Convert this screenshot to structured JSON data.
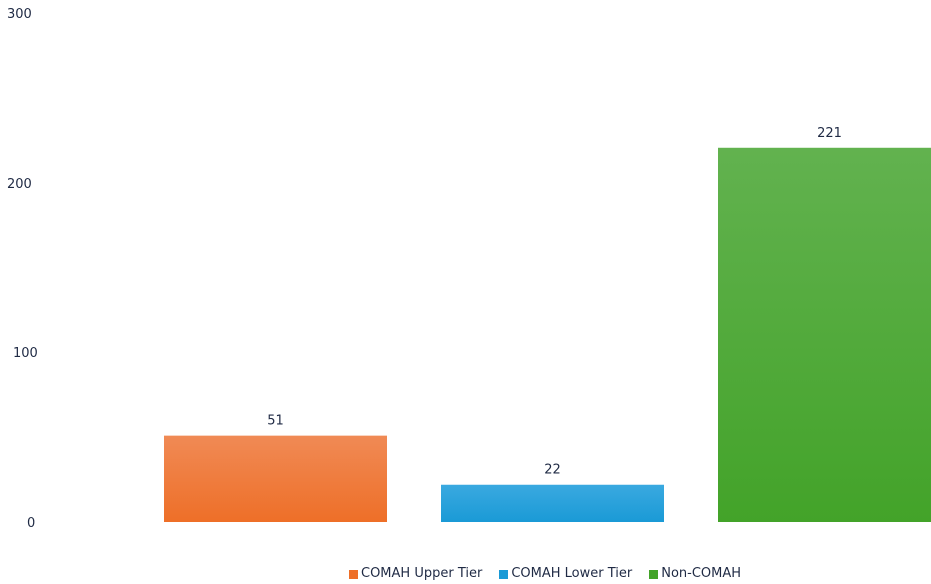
{
  "chart_data": {
    "type": "bar",
    "categories": [
      "COMAH Upper Tier",
      "COMAH Lower Tier",
      "Non-COMAH"
    ],
    "values": [
      51,
      22,
      221
    ],
    "ylim": [
      0,
      300
    ],
    "yticks": [
      "0",
      "100",
      "200",
      "300"
    ],
    "grid": false,
    "legend_position": "bottom",
    "series": [
      {
        "name": "COMAH Upper Tier",
        "value": 51,
        "label": "51",
        "color": "#ee6f28",
        "color_top": "#f08a55"
      },
      {
        "name": "COMAH Lower Tier",
        "value": 22,
        "label": "22",
        "color": "#1a9ad6",
        "color_top": "#3aa9e0"
      },
      {
        "name": "Non-COMAH",
        "value": 221,
        "label": "221",
        "color": "#43a329",
        "color_top": "#62b24f"
      }
    ]
  }
}
